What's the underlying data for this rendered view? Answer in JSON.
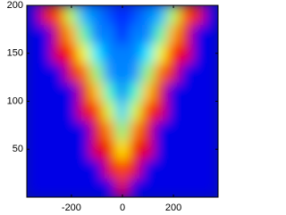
{
  "chart_data": {
    "type": "heatmap",
    "x": [
      -350,
      -300,
      -250,
      -200,
      -150,
      -100,
      -50,
      0,
      50,
      100,
      150,
      200,
      250,
      300,
      350
    ],
    "y": [
      10,
      30,
      50,
      70,
      90,
      110,
      130,
      150,
      170,
      190
    ],
    "z": [
      [
        0.1,
        0.1,
        0.1,
        0.1,
        0.1,
        0.1,
        0.1,
        0.9,
        0.1,
        0.1,
        0.1,
        0.1,
        0.1,
        0.1,
        0.1
      ],
      [
        0.1,
        0.1,
        0.1,
        0.1,
        0.1,
        0.1,
        0.9,
        0.8,
        0.9,
        0.1,
        0.1,
        0.1,
        0.1,
        0.1,
        0.1
      ],
      [
        0.1,
        0.1,
        0.1,
        0.1,
        0.1,
        0.9,
        0.89,
        0.64,
        0.89,
        0.9,
        0.1,
        0.1,
        0.1,
        0.1,
        0.1
      ],
      [
        0.1,
        0.1,
        0.1,
        0.1,
        0.1,
        0.9,
        0.74,
        0.49,
        0.74,
        0.9,
        0.1,
        0.1,
        0.1,
        0.1,
        0.1
      ],
      [
        0.1,
        0.1,
        0.1,
        0.1,
        0.9,
        0.83,
        0.58,
        0.33,
        0.58,
        0.83,
        0.9,
        0.1,
        0.1,
        0.1,
        0.1
      ],
      [
        0.1,
        0.1,
        0.1,
        0.1,
        0.9,
        0.68,
        0.43,
        0.25,
        0.43,
        0.68,
        0.9,
        0.1,
        0.1,
        0.1,
        0.1
      ],
      [
        0.1,
        0.1,
        0.1,
        0.9,
        0.77,
        0.52,
        0.27,
        0.25,
        0.27,
        0.52,
        0.77,
        0.9,
        0.1,
        0.1,
        0.1
      ],
      [
        0.1,
        0.1,
        0.9,
        0.87,
        0.61,
        0.36,
        0.25,
        0.25,
        0.25,
        0.36,
        0.61,
        0.87,
        0.9,
        0.1,
        0.1
      ],
      [
        0.1,
        0.1,
        0.9,
        0.71,
        0.46,
        0.25,
        0.25,
        0.15,
        0.25,
        0.25,
        0.46,
        0.71,
        0.9,
        0.1,
        0.1
      ],
      [
        0.1,
        0.9,
        0.8,
        0.55,
        0.3,
        0.25,
        0.2,
        0.15,
        0.2,
        0.25,
        0.3,
        0.55,
        0.8,
        0.9,
        0.1
      ]
    ],
    "colormap": "jet",
    "xlim": [
      -375,
      375
    ],
    "ylim": [
      0,
      200
    ],
    "xticks": [
      -200,
      0,
      200
    ],
    "yticks": [
      50,
      100,
      150,
      200
    ]
  }
}
